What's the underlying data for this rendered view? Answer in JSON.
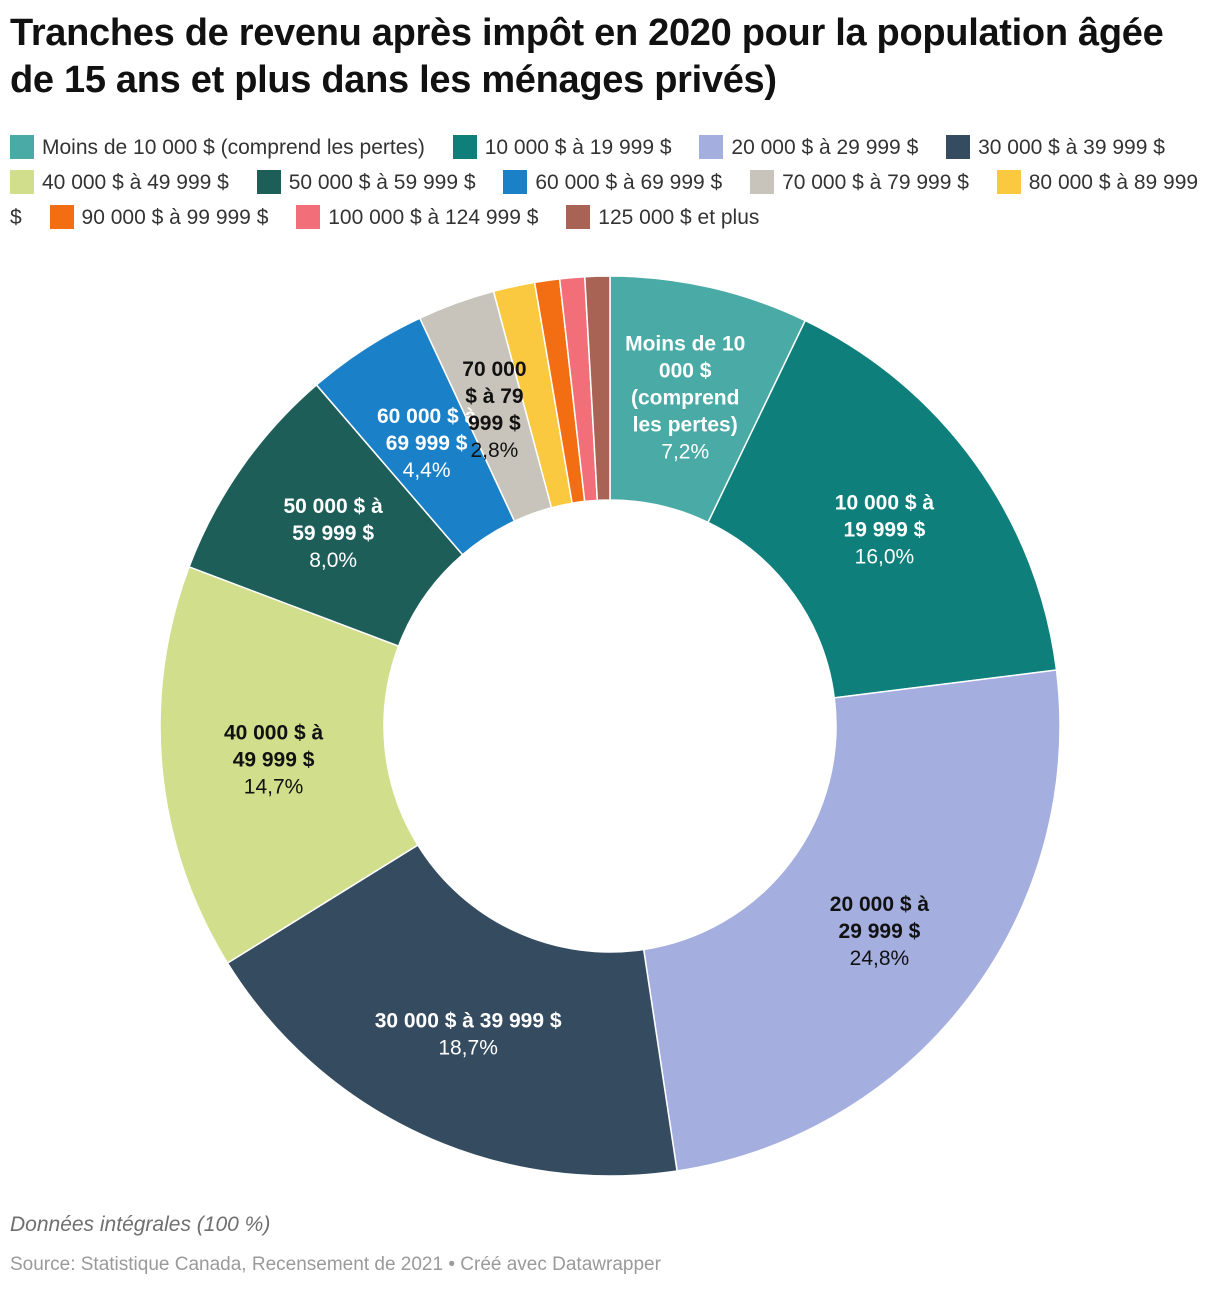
{
  "chart_data": {
    "type": "pie",
    "subtype": "donut",
    "title": "Tranches de revenu après impôt en 2020 pour la population âgée de 15 ans et plus dans les ménages privés)",
    "unit": "%",
    "series": [
      {
        "name": "Moins de 10 000 $ (comprend les pertes)",
        "label_lines": [
          "Moins de 10",
          "000 $",
          "(comprend",
          "les pertes)"
        ],
        "value": 7.2,
        "value_label": "7,2%",
        "color": "#4aaaa5",
        "text_color": "#ffffff",
        "show_label": true
      },
      {
        "name": "10 000 $ à 19 999 $",
        "label_lines": [
          "10 000 $ à",
          "19 999 $"
        ],
        "value": 16.0,
        "value_label": "16,0%",
        "color": "#0e7f7a",
        "text_color": "#ffffff",
        "show_label": true
      },
      {
        "name": "20 000 $ à 29 999 $",
        "label_lines": [
          "20 000 $ à",
          "29 999 $"
        ],
        "value": 24.8,
        "value_label": "24,8%",
        "color": "#a4aedf",
        "text_color": "#111111",
        "show_label": true
      },
      {
        "name": "30 000 $ à 39 999 $",
        "label_lines": [
          "30 000 $ à 39 999 $"
        ],
        "value": 18.7,
        "value_label": "18,7%",
        "color": "#344b60",
        "text_color": "#ffffff",
        "show_label": true
      },
      {
        "name": "40 000 $ à 49 999 $",
        "label_lines": [
          "40 000 $ à",
          "49 999 $"
        ],
        "value": 14.7,
        "value_label": "14,7%",
        "color": "#d1de8b",
        "text_color": "#111111",
        "show_label": true
      },
      {
        "name": "50 000 $ à 59 999 $",
        "label_lines": [
          "50 000 $ à",
          "59 999 $"
        ],
        "value": 8.0,
        "value_label": "8,0%",
        "color": "#1e5e59",
        "text_color": "#ffffff",
        "show_label": true
      },
      {
        "name": "60 000 $ à 69 999 $",
        "label_lines": [
          "60 000 $ à",
          "69 999 $"
        ],
        "value": 4.4,
        "value_label": "4,4%",
        "color": "#1a80c8",
        "text_color": "#ffffff",
        "show_label": true
      },
      {
        "name": "70 000 $ à 79 999 $",
        "label_lines": [
          "70 000",
          "$ à 79",
          "999 $"
        ],
        "value": 2.8,
        "value_label": "2,8%",
        "color": "#c9c4bb",
        "text_color": "#111111",
        "show_label": true
      },
      {
        "name": "80 000 $ à 89 999 $",
        "label_lines": [],
        "value": 1.5,
        "value_label": "",
        "color": "#fbc93f",
        "text_color": "#111111",
        "show_label": false
      },
      {
        "name": "90 000 $ à 99 999 $",
        "label_lines": [],
        "value": 0.9,
        "value_label": "",
        "color": "#f36d13",
        "text_color": "#111111",
        "show_label": false
      },
      {
        "name": "100 000 $ à 124 999 $",
        "label_lines": [],
        "value": 0.9,
        "value_label": "",
        "color": "#f26f7a",
        "text_color": "#111111",
        "show_label": false
      },
      {
        "name": "125 000 $ et plus",
        "label_lines": [],
        "value": 0.9,
        "value_label": "",
        "color": "#a86354",
        "text_color": "#111111",
        "show_label": false
      }
    ],
    "legend_position": "top"
  },
  "note": "Données intégrales (100 %)",
  "source": "Source: Statistique Canada, Recensement de 2021 • Créé avec Datawrapper"
}
